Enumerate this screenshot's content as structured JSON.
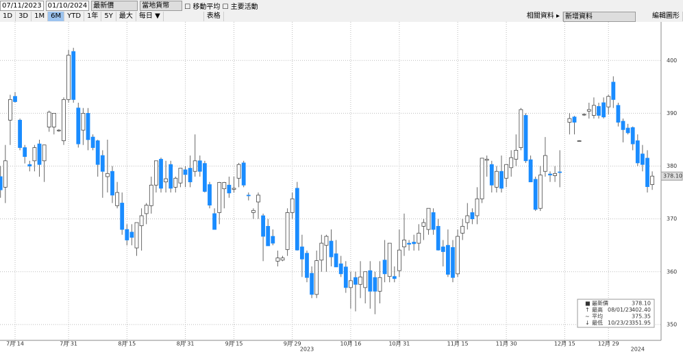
{
  "toolbar": {
    "start_date": "07/11/2023",
    "end_date": "01/10/2024",
    "field": "最新價",
    "currency": "當地貨幣",
    "moving_average": "移動平均",
    "key_events": "主要活動",
    "ranges": [
      "1D",
      "3D",
      "1M",
      "6M",
      "YTD",
      "1年",
      "5Y",
      "最大"
    ],
    "frequency": "每日 ▼",
    "table": "表格",
    "related": "相關資料 ▸",
    "add_data": "新增資料",
    "edit_chart": "編輯圖形"
  },
  "chart_data": {
    "type": "candlestick",
    "up_color": "#ffffff",
    "down_color": "#1a8cff",
    "ylim": [
      347,
      407.3
    ],
    "yticks": [
      350,
      360,
      370,
      380,
      390,
      400
    ],
    "grid": true,
    "categories": [
      null,
      null,
      null,
      "7月 14",
      null,
      null,
      null,
      null,
      null,
      null,
      null,
      null,
      null,
      null,
      "7月 31",
      null,
      null,
      null,
      null,
      null,
      null,
      null,
      null,
      null,
      null,
      null,
      "8月 15",
      null,
      null,
      null,
      null,
      null,
      null,
      null,
      null,
      null,
      null,
      null,
      "8月 31",
      null,
      null,
      null,
      null,
      null,
      null,
      null,
      null,
      null,
      "9月 15",
      null,
      null,
      null,
      null,
      null,
      null,
      null,
      null,
      null,
      null,
      null,
      "9月 29",
      null,
      null,
      null,
      null,
      null,
      null,
      null,
      null,
      null,
      null,
      null,
      "10月 16",
      null,
      null,
      null,
      null,
      null,
      null,
      null,
      null,
      null,
      "10月 31",
      null,
      null,
      null,
      null,
      null,
      null,
      null,
      null,
      null,
      null,
      null,
      "11月 15",
      null,
      null,
      null,
      null,
      null,
      null,
      null,
      null,
      null,
      "11月 30",
      null,
      null,
      null,
      null,
      null,
      null,
      null,
      null,
      null,
      null,
      null,
      "12月 15",
      null,
      null,
      null,
      null,
      null,
      null,
      null,
      null,
      "12月 29",
      null,
      null,
      null,
      null,
      null,
      null,
      null,
      null
    ],
    "year_labels": [
      "2023",
      "2024"
    ],
    "ohlc": [
      [
        378,
        380,
        374,
        375.5
      ],
      [
        376,
        384,
        373,
        381
      ],
      [
        388.7,
        393.5,
        384,
        392.6
      ],
      [
        393.2,
        394,
        392,
        392.2
      ],
      [
        388.7,
        389,
        383,
        383.5
      ],
      [
        383.5,
        384,
        380.5,
        381.8
      ],
      [
        380.3,
        381,
        379,
        380
      ],
      [
        381,
        384,
        379,
        383.5
      ],
      [
        384.2,
        385,
        378,
        380.3
      ],
      [
        381,
        384,
        377,
        384
      ],
      [
        387.4,
        390.5,
        386.5,
        390.2
      ],
      [
        387.4,
        390,
        386,
        390
      ],
      [
        386.8,
        387,
        386.5,
        386.8
      ],
      [
        384.8,
        393,
        384,
        392.6
      ],
      [
        392.6,
        402,
        392,
        401
      ],
      [
        401.7,
        402.4,
        392,
        392.6
      ],
      [
        391,
        392,
        383.5,
        384.2
      ],
      [
        386.8,
        391,
        384,
        390
      ],
      [
        390,
        391,
        383,
        385
      ],
      [
        385.5,
        386,
        383,
        383.5
      ],
      [
        384.8,
        385,
        378,
        380.3
      ],
      [
        382,
        383,
        374,
        379
      ],
      [
        378,
        385,
        375,
        378.6
      ],
      [
        379,
        380,
        373,
        374.5
      ],
      [
        372.5,
        377,
        372,
        375
      ],
      [
        373,
        375,
        367,
        368
      ],
      [
        368,
        369,
        365,
        366
      ],
      [
        367.5,
        369,
        365,
        366.5
      ],
      [
        364.5,
        368,
        363,
        369.3
      ],
      [
        368.7,
        372,
        364,
        370.6
      ],
      [
        371,
        373,
        369,
        372.6
      ],
      [
        372.5,
        378,
        371,
        376.4
      ],
      [
        376.4,
        381,
        375,
        381
      ],
      [
        381.3,
        381.6,
        375,
        375.8
      ],
      [
        377,
        381,
        375,
        377.6
      ],
      [
        380.3,
        381,
        375,
        375.8
      ],
      [
        376,
        378,
        375,
        377.7
      ],
      [
        376.8,
        379.5,
        376,
        379.6
      ],
      [
        379.3,
        380,
        376,
        378.4
      ],
      [
        379.6,
        382,
        376,
        377
      ],
      [
        379,
        386,
        378,
        381
      ],
      [
        381,
        382,
        378,
        379
      ],
      [
        380.5,
        381,
        375,
        375.2
      ],
      [
        376.5,
        377,
        372,
        372.6
      ],
      [
        371,
        372,
        368,
        368
      ],
      [
        371.2,
        377,
        369,
        376.9
      ],
      [
        375.7,
        377,
        372,
        376.9
      ],
      [
        376.4,
        378,
        374,
        374.9
      ],
      [
        375.6,
        378,
        375,
        375.8
      ],
      [
        377.7,
        380.6,
        376,
        380.3
      ],
      [
        380.6,
        381,
        376,
        376.4
      ],
      [
        374.5,
        375,
        373.5,
        374.4
      ],
      [
        371.2,
        372,
        370,
        371.6
      ],
      [
        373.2,
        375,
        370,
        374.5
      ],
      [
        370.6,
        371,
        362,
        366.7
      ],
      [
        368.6,
        370,
        365,
        364.9
      ],
      [
        366.7,
        368,
        365,
        365.4
      ],
      [
        362,
        364,
        361,
        362.6
      ],
      [
        362.2,
        363,
        362,
        362.6
      ],
      [
        364.2,
        372,
        363,
        371.2
      ],
      [
        371.2,
        375,
        370,
        373.8
      ],
      [
        375.8,
        377,
        364,
        364.1
      ],
      [
        364.7,
        367,
        359,
        362.4
      ],
      [
        363.5,
        364,
        358,
        358.9
      ],
      [
        359.7,
        361,
        355,
        355.7
      ],
      [
        355.7,
        364,
        355,
        362.1
      ],
      [
        362.2,
        367,
        360,
        365.4
      ],
      [
        365,
        367,
        360,
        366.7
      ],
      [
        365.8,
        368,
        361,
        362.8
      ],
      [
        363.4,
        366,
        361,
        360.9
      ],
      [
        361.5,
        363,
        359,
        359.6
      ],
      [
        360.9,
        362,
        356,
        357
      ],
      [
        357,
        360,
        353,
        358.3
      ],
      [
        358.9,
        360,
        352.5,
        357.6
      ],
      [
        357.6,
        362,
        355,
        359
      ],
      [
        357,
        360,
        354,
        360
      ],
      [
        360.2,
        362,
        353,
        356.3
      ],
      [
        358.9,
        360,
        351.95,
        356.3
      ],
      [
        356.3,
        362,
        354,
        358.9
      ],
      [
        362.2,
        366,
        358,
        359.6
      ],
      [
        359.1,
        364,
        358,
        365.4
      ],
      [
        359.1,
        361,
        358,
        358.7
      ],
      [
        360.2,
        368,
        359,
        364.1
      ],
      [
        364.7,
        371,
        363,
        366
      ],
      [
        365.4,
        366,
        364,
        365.2
      ],
      [
        365.6,
        367,
        364,
        365.3
      ],
      [
        365.4,
        369,
        364,
        367.3
      ],
      [
        368.6,
        370,
        366,
        369.3
      ],
      [
        368,
        372,
        367,
        372
      ],
      [
        371.2,
        372,
        367,
        368
      ],
      [
        368.6,
        370,
        364,
        364.1
      ],
      [
        364.7,
        366,
        361,
        363.8
      ],
      [
        365,
        368,
        359,
        359.5
      ],
      [
        364.6,
        366,
        358,
        358.9
      ],
      [
        359.6,
        368,
        359,
        366.7
      ],
      [
        367.3,
        370,
        366,
        368.6
      ],
      [
        369.3,
        373,
        368,
        370.6
      ],
      [
        371.2,
        372,
        369,
        370
      ],
      [
        370.6,
        376,
        369,
        373.8
      ],
      [
        373.8,
        381,
        373,
        381.5
      ],
      [
        381.1,
        382,
        378,
        381.3
      ],
      [
        380.3,
        381,
        375,
        376.4
      ],
      [
        376,
        380,
        375,
        379
      ],
      [
        379,
        382,
        375,
        375.8
      ],
      [
        377.7,
        380,
        376,
        380.3
      ],
      [
        379.7,
        383,
        378,
        381.6
      ],
      [
        381.3,
        386,
        380,
        383
      ],
      [
        383.5,
        391,
        383,
        390.7
      ],
      [
        389.6,
        390,
        380.6,
        381
      ],
      [
        381.2,
        382,
        377,
        377
      ],
      [
        377.5,
        378,
        371.5,
        371.8
      ],
      [
        372,
        380,
        371.5,
        378.3
      ],
      [
        379,
        385.5,
        378,
        382
      ],
      [
        378.5,
        379,
        377,
        378.3
      ],
      [
        378.2,
        380,
        377,
        378.6
      ],
      [
        378.9,
        383,
        376,
        378.8
      ],
      null,
      [
        388.3,
        390,
        386,
        389
      ],
      [
        389.3,
        389.5,
        386,
        388.3
      ],
      [
        384.8,
        384.9,
        384.7,
        384.8
      ],
      [
        389.7,
        390,
        389.5,
        389.8
      ],
      [
        390.4,
        392,
        389,
        390.7
      ],
      [
        389.6,
        393,
        389,
        391.5
      ],
      [
        391.3,
        392,
        389,
        389.6
      ],
      [
        392,
        393,
        389,
        389.3
      ],
      [
        391.2,
        393.5,
        389.8,
        393.2
      ],
      [
        395.9,
        397,
        391,
        392.6
      ],
      [
        391.5,
        392,
        387.5,
        388.3
      ],
      [
        388.5,
        389,
        384.5,
        386.9
      ],
      [
        387.2,
        388,
        386,
        386.3
      ],
      [
        387.3,
        387.5,
        383,
        384.2
      ],
      [
        384.8,
        386,
        380,
        380.6
      ],
      [
        382.3,
        384,
        379,
        380.3
      ],
      [
        381.5,
        383,
        375,
        376.1
      ],
      [
        376.5,
        379,
        375.5,
        378.1
      ]
    ],
    "legend": [
      {
        "name": "最新價",
        "value": "378.10"
      },
      {
        "name": "最高",
        "date": "08/01/23",
        "value": "402.40"
      },
      {
        "name": "平均",
        "value": "375.35"
      },
      {
        "name": "最低",
        "date": "10/23/23",
        "value": "351.95"
      }
    ]
  }
}
